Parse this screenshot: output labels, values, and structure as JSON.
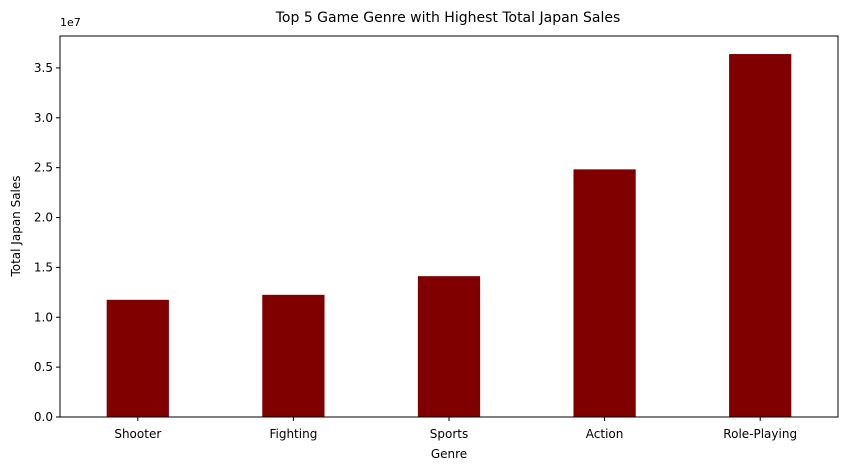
{
  "chart_data": {
    "type": "bar",
    "title": "Top 5 Game Genre with Highest Total Japan Sales",
    "xlabel": "Genre",
    "ylabel": "Total Japan Sales",
    "offset_label": "1e7",
    "categories": [
      "Shooter",
      "Fighting",
      "Sports",
      "Action",
      "Role-Playing"
    ],
    "values": [
      11750000,
      12250000,
      14120000,
      24830000,
      36390000
    ],
    "ylim": [
      0,
      38200000
    ],
    "yticks": [
      0,
      5000000,
      10000000,
      15000000,
      20000000,
      25000000,
      30000000,
      35000000
    ],
    "ytick_labels": [
      "0.0",
      "0.5",
      "1.0",
      "1.5",
      "2.0",
      "2.5",
      "3.0",
      "3.5"
    ],
    "bar_color": "#800000",
    "grid": false,
    "legend": "none"
  }
}
